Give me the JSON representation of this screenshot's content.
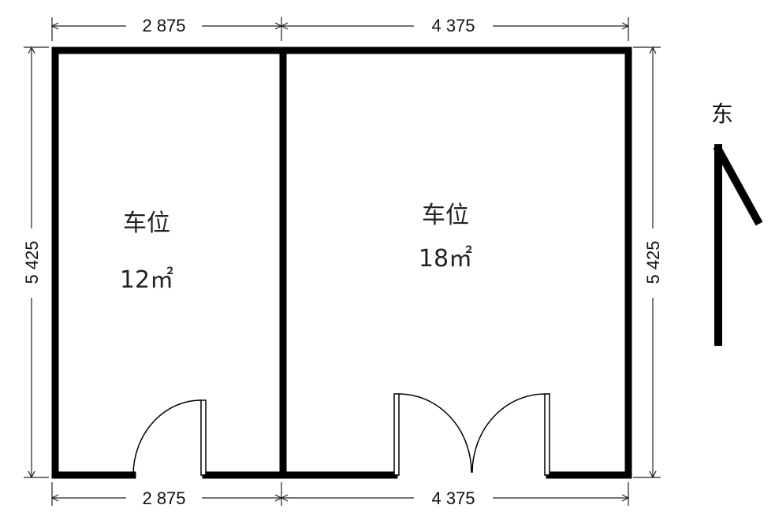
{
  "dimensions": {
    "top_left": "2 875",
    "top_right": "4 375",
    "bottom_left": "2 875",
    "bottom_right": "4 375",
    "left_height": "5 425",
    "right_height": "5 425"
  },
  "rooms": [
    {
      "label": "车位",
      "area": "12㎡"
    },
    {
      "label": "车位",
      "area": "18㎡"
    }
  ],
  "compass": {
    "label": "东"
  }
}
